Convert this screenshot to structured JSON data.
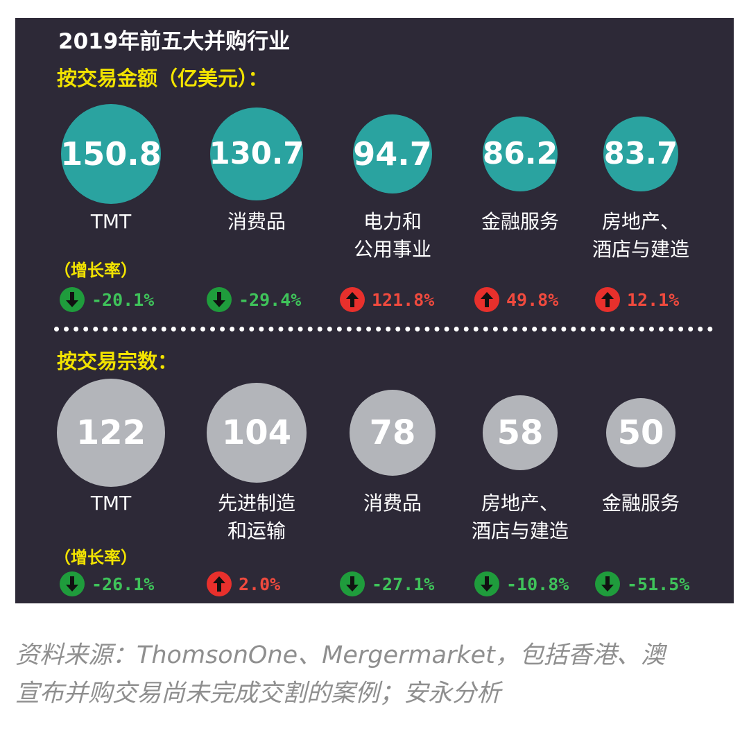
{
  "title": "2019年前五大并购行业",
  "value_section": {
    "heading": "按交易金额（亿美元）：",
    "growth_heading": "（增长率）"
  },
  "count_section": {
    "heading": "按交易宗数：",
    "growth_heading": "（增长率）"
  },
  "colors": {
    "panel": "#2d2937",
    "teal_bubble": "#2aa3a0",
    "gray_bubble": "#b3b5ba",
    "heading_yellow": "#f2e300",
    "increase_red": "#e8302c",
    "decrease_green": "#1f9c3c"
  },
  "chart_data": [
    {
      "type": "bubble",
      "title": "按交易金额（亿美元）：",
      "unit": "亿美元",
      "categories": [
        "TMT",
        "消费品",
        "电力和\n公用事业",
        "金融服务",
        "房地产、\n酒店与建造"
      ],
      "values": [
        150.8,
        130.7,
        94.7,
        86.2,
        83.7
      ],
      "value_labels": [
        "150.8",
        "130.7",
        "94.7",
        "86.2",
        "83.7"
      ],
      "growth": [
        -20.1,
        -29.4,
        121.8,
        49.8,
        12.1
      ],
      "growth_labels": [
        "-20.1%",
        "-29.4%",
        "121.8%",
        "49.8%",
        "12.1%"
      ]
    },
    {
      "type": "bubble",
      "title": "按交易宗数：",
      "categories": [
        "TMT",
        "先进制造\n和运输",
        "消费品",
        "房地产、\n酒店与建造",
        "金融服务"
      ],
      "values": [
        122,
        104,
        78,
        58,
        50
      ],
      "value_labels": [
        "122",
        "104",
        "78",
        "58",
        "50"
      ],
      "growth": [
        -26.1,
        2.0,
        -27.1,
        -10.8,
        -51.5
      ],
      "growth_labels": [
        "-26.1%",
        "2.0%",
        "-27.1%",
        "-10.8%",
        "-51.5%"
      ]
    }
  ],
  "source_note": {
    "line1": "资料来源：ThomsonOne、Mergermarket，包括香港、澳",
    "line2": "宣布并购交易尚未完成交割的案例；安永分析"
  }
}
